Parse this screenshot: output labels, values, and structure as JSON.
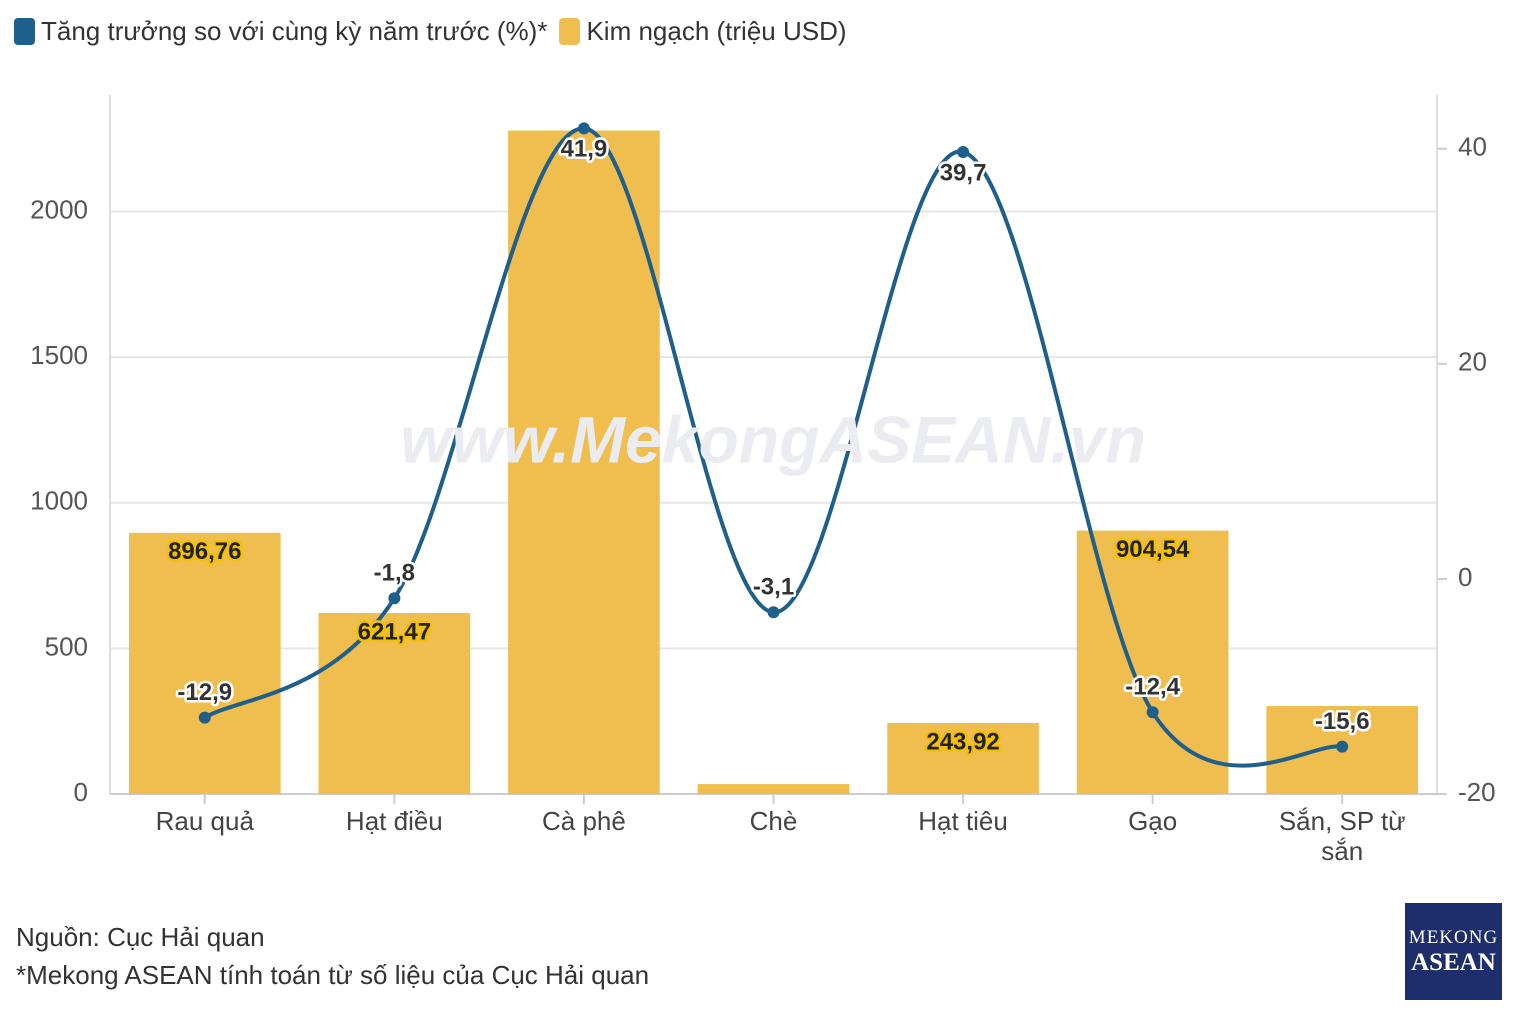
{
  "chart_data": {
    "type": "combo",
    "categories": [
      "Rau quả",
      "Hạt điều",
      "Cà phê",
      "Chè",
      "Hạt tiêu",
      "Gạo",
      "Sắn, SP từ sắn"
    ],
    "series": [
      {
        "name": "Tăng trưởng so với cùng kỳ năm trước (%)*",
        "type": "line",
        "axis": "y2",
        "color": "#1f5f8b",
        "values": [
          -12.9,
          -1.8,
          41.9,
          -3.1,
          39.7,
          -12.4,
          -15.6
        ],
        "value_labels": [
          "-12,9",
          "-1,8",
          "41,9",
          "-3,1",
          "39,7",
          "-12,4",
          "-15,6"
        ]
      },
      {
        "name": "Kim ngạch (triệu USD)",
        "type": "bar",
        "color": "#f0be4e",
        "values": [
          896.76,
          621.47,
          2278,
          34,
          243.92,
          904.54,
          302
        ],
        "value_labels": [
          "896,76",
          "621,47",
          null,
          null,
          "243,92",
          "904,54",
          null
        ]
      }
    ],
    "ylim": [
      0,
      2400
    ],
    "yticks": [
      0,
      500,
      1000,
      1500,
      2000
    ],
    "y2lim": [
      -20,
      45
    ],
    "y2ticks": [
      -20,
      0,
      20,
      40
    ],
    "grid": true,
    "watermark": "www.MekongASEAN.vn",
    "notes": [
      "Nguồn: Cục Hải quan",
      "*Mekong ASEAN tính toán từ số liệu của Cục Hải quan"
    ],
    "logo": [
      "MEKONG",
      "ASEAN"
    ]
  }
}
